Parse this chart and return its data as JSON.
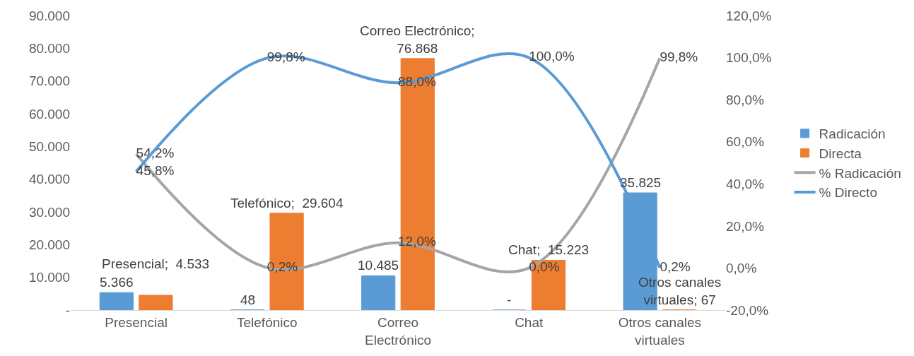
{
  "chart_data": {
    "type": "bar",
    "categories": [
      "Presencial",
      "Telefónico",
      "Correo Electrónico",
      "Chat",
      "Otros canales virtuales"
    ],
    "series": [
      {
        "name": "Radicación",
        "color": "#5b9bd5",
        "values": [
          5366,
          48,
          10485,
          0,
          35825
        ],
        "value_labels": [
          "5.366",
          "48",
          "10.485",
          "-",
          "35.825"
        ]
      },
      {
        "name": "Directa",
        "color": "#ed7d31",
        "values": [
          4533,
          29604,
          76868,
          15223,
          67
        ],
        "value_labels": [
          "Presencial;  4.533",
          "Telefónico;  29.604",
          "Correo Electrónico; 76.868",
          "Chat;  15.223",
          "Otros canales virtuales; 67"
        ]
      },
      {
        "name": "% Radicación",
        "type": "line",
        "axis": "y2",
        "color": "#a5a5a5",
        "values": [
          54.2,
          0.2,
          12.0,
          0.0,
          99.8
        ],
        "value_labels": [
          "54,2%",
          "0,2%",
          "12,0%",
          "0,0%",
          "99,8%"
        ]
      },
      {
        "name": "% Directo",
        "type": "line",
        "axis": "y2",
        "color": "#5b9bd5",
        "values": [
          45.8,
          99.8,
          88.0,
          100.0,
          0.2
        ],
        "value_labels": [
          "45,8%",
          "99,8%",
          "88,0%",
          "100,0%",
          "0,2%"
        ]
      }
    ],
    "ylim": [
      0,
      90000
    ],
    "yticks": [
      {
        "value": 0,
        "label": "-"
      },
      {
        "value": 10000,
        "label": "10.000"
      },
      {
        "value": 20000,
        "label": "20.000"
      },
      {
        "value": 30000,
        "label": "30.000"
      },
      {
        "value": 40000,
        "label": "40.000"
      },
      {
        "value": 50000,
        "label": "50.000"
      },
      {
        "value": 60000,
        "label": "60.000"
      },
      {
        "value": 70000,
        "label": "70.000"
      },
      {
        "value": 80000,
        "label": "80.000"
      },
      {
        "value": 90000,
        "label": "90.000"
      }
    ],
    "y2lim": [
      -20,
      120
    ],
    "y2ticks": [
      {
        "value": -20,
        "label": "-20,0%"
      },
      {
        "value": 0,
        "label": "0,0%"
      },
      {
        "value": 20,
        "label": "20,0%"
      },
      {
        "value": 40,
        "label": "40,0%"
      },
      {
        "value": 60,
        "label": "60,0%"
      },
      {
        "value": 80,
        "label": "80,0%"
      },
      {
        "value": 100,
        "label": "100,0%"
      },
      {
        "value": 120,
        "label": "120,0%"
      }
    ],
    "legend": "right",
    "grid": false,
    "marker": "none",
    "line_style": "solid"
  }
}
